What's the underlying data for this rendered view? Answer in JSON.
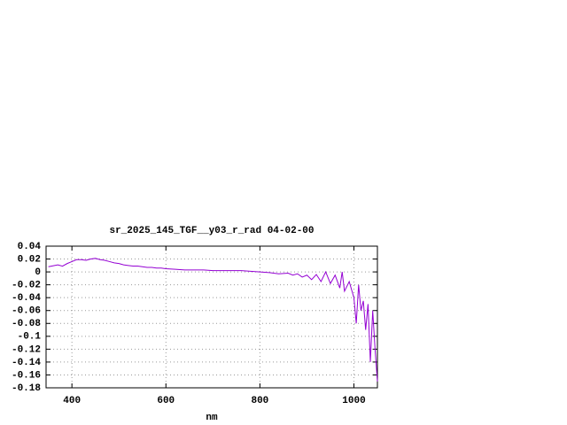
{
  "chart_data": {
    "type": "line",
    "title": "sr_2025_145_TGF__y03_r_rad 04-02-00",
    "x_label": "nm",
    "x": [
      350,
      370,
      380,
      390,
      400,
      410,
      420,
      430,
      440,
      450,
      460,
      470,
      480,
      490,
      500,
      510,
      520,
      530,
      540,
      550,
      560,
      570,
      580,
      590,
      600,
      620,
      640,
      660,
      680,
      700,
      720,
      740,
      760,
      780,
      800,
      820,
      840,
      860,
      870,
      880,
      890,
      900,
      910,
      920,
      930,
      940,
      950,
      960,
      970,
      975,
      980,
      990,
      1000,
      1005,
      1010,
      1015,
      1020,
      1025,
      1030,
      1035,
      1040,
      1045,
      1050
    ],
    "series": [
      {
        "color": "#9400d3",
        "values": [
          0.008,
          0.011,
          0.009,
          0.013,
          0.016,
          0.019,
          0.019,
          0.018,
          0.02,
          0.021,
          0.019,
          0.018,
          0.016,
          0.014,
          0.013,
          0.011,
          0.01,
          0.009,
          0.009,
          0.008,
          0.007,
          0.007,
          0.006,
          0.006,
          0.005,
          0.004,
          0.003,
          0.003,
          0.003,
          0.002,
          0.002,
          0.002,
          0.002,
          0.001,
          0.0,
          -0.001,
          -0.003,
          -0.002,
          -0.005,
          -0.003,
          -0.008,
          -0.005,
          -0.012,
          -0.004,
          -0.015,
          0.0,
          -0.018,
          -0.005,
          -0.025,
          0.0,
          -0.03,
          -0.015,
          -0.04,
          -0.08,
          -0.02,
          -0.06,
          -0.045,
          -0.09,
          -0.05,
          -0.14,
          -0.06,
          -0.12,
          -0.17
        ]
      }
    ],
    "xlim": [
      345,
      1050
    ],
    "xticks": [
      400,
      600,
      800,
      1000
    ],
    "ylim": [
      -0.18,
      0.04
    ],
    "yticks": [
      0.04,
      0.02,
      0,
      -0.02,
      -0.04,
      -0.06,
      -0.08,
      -0.1,
      -0.12,
      -0.14,
      -0.16,
      -0.18
    ],
    "grid": true
  }
}
